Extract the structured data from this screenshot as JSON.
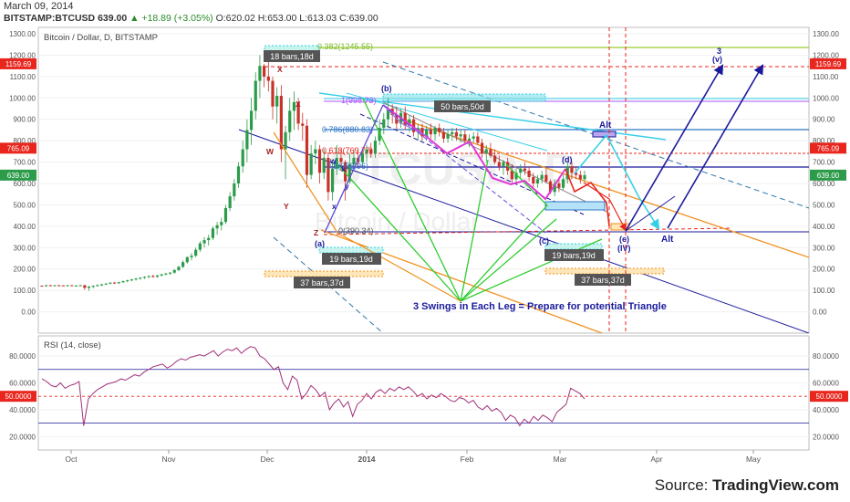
{
  "header": {
    "date": "March 09, 2014",
    "symbol": "BITSTAMP:BTCUSD",
    "price": "639.00",
    "change": "+18.89 (+3.05%)",
    "open": "O:620.02",
    "high": "H:653.00",
    "low": "L:613.03",
    "close": "C:639.00"
  },
  "source": {
    "prefix": "Source:",
    "name": "TradingView.com"
  },
  "watermark": {
    "symbol": "BTCUSD, D",
    "name": "Bitcoin / Dollar"
  },
  "chart_data": [
    {
      "type": "candlestick",
      "title": "Bitcoin / Dollar, D, BITSTAMP",
      "ylim": [
        -100,
        1330
      ],
      "y_ticks": [
        "0.00",
        "100.00",
        "200.00",
        "300.00",
        "400.00",
        "500.00",
        "600.00",
        "700.00",
        "800.00",
        "900.00",
        "1000.00",
        "1100.00",
        "1200.00",
        "1300.00"
      ],
      "x_ticks": [
        "Oct",
        "Nov",
        "Dec",
        "2014",
        "Feb",
        "Mar",
        "Apr",
        "May"
      ],
      "price_labels": [
        {
          "value": 1159.69,
          "text": "1159.69",
          "color": "#e8261e"
        },
        {
          "value": 765.09,
          "text": "765.09",
          "color": "#e8261e"
        },
        {
          "value": 639.0,
          "text": "639.00",
          "color": "#2c9b4a"
        }
      ],
      "series": [
        {
          "ohlc": [
            [
              122,
              123,
              119,
              121
            ],
            [
              121,
              126,
              117,
              124
            ],
            [
              124,
              126,
              120,
              122
            ],
            [
              122,
              125,
              119,
              124
            ],
            [
              124,
              126,
              122,
              123
            ],
            [
              123,
              124,
              120,
              122
            ],
            [
              122,
              125,
              118,
              124
            ],
            [
              124,
              125,
              120,
              121
            ],
            [
              121,
              124,
              117,
              123
            ],
            [
              123,
              126,
              120,
              124
            ],
            [
              124,
              126,
              103,
              112
            ],
            [
              112,
              120,
              98,
              118
            ],
            [
              118,
              124,
              110,
              121
            ],
            [
              121,
              128,
              117,
              125
            ],
            [
              125,
              131,
              120,
              128
            ],
            [
              128,
              134,
              125,
              132
            ],
            [
              132,
              138,
              128,
              136
            ],
            [
              136,
              140,
              131,
              134
            ],
            [
              134,
              140,
              130,
              138
            ],
            [
              138,
              146,
              135,
              143
            ],
            [
              143,
              150,
              138,
              147
            ],
            [
              147,
              154,
              143,
              151
            ],
            [
              151,
              158,
              146,
              155
            ],
            [
              155,
              162,
              150,
              159
            ],
            [
              159,
              166,
              154,
              163
            ],
            [
              163,
              170,
              158,
              167
            ],
            [
              167,
              173,
              160,
              164
            ],
            [
              164,
              172,
              159,
              170
            ],
            [
              170,
              178,
              165,
              175
            ],
            [
              175,
              182,
              170,
              179
            ],
            [
              179,
              186,
              172,
              183
            ],
            [
              183,
              200,
              178,
              195
            ],
            [
              195,
              215,
              190,
              210
            ],
            [
              210,
              240,
              205,
              232
            ],
            [
              232,
              260,
              225,
              255
            ],
            [
              255,
              275,
              240,
              262
            ],
            [
              262,
              300,
              255,
              290
            ],
            [
              290,
              330,
              280,
              320
            ],
            [
              320,
              350,
              300,
              335
            ],
            [
              335,
              360,
              310,
              345
            ],
            [
              345,
              400,
              335,
              390
            ],
            [
              390,
              420,
              360,
              405
            ],
            [
              405,
              440,
              380,
              420
            ],
            [
              420,
              500,
              410,
              485
            ],
            [
              485,
              560,
              470,
              540
            ],
            [
              540,
              620,
              520,
              600
            ],
            [
              600,
              700,
              580,
              680
            ],
            [
              680,
              800,
              650,
              760
            ],
            [
              760,
              900,
              700,
              850
            ],
            [
              850,
              1000,
              780,
              940
            ],
            [
              940,
              1120,
              900,
              1080
            ],
            [
              1080,
              1200,
              1000,
              1150
            ],
            [
              1150,
              1160,
              1050,
              1100
            ],
            [
              1100,
              1170,
              1030,
              1080
            ],
            [
              1080,
              1100,
              900,
              960
            ],
            [
              960,
              1050,
              880,
              1010
            ],
            [
              1010,
              1060,
              700,
              760
            ],
            [
              760,
              870,
              620,
              840
            ],
            [
              840,
              1000,
              800,
              940
            ],
            [
              940,
              1030,
              850,
              980
            ],
            [
              980,
              1000,
              850,
              880
            ],
            [
              880,
              930,
              800,
              870
            ],
            [
              870,
              900,
              580,
              640
            ],
            [
              640,
              780,
              620,
              740
            ],
            [
              740,
              800,
              690,
              760
            ],
            [
              760,
              780,
              600,
              650
            ],
            [
              650,
              760,
              620,
              720
            ],
            [
              720,
              740,
              520,
              560
            ],
            [
              560,
              700,
              520,
              670
            ],
            [
              670,
              780,
              640,
              720
            ],
            [
              720,
              760,
              660,
              700
            ],
            [
              700,
              710,
              520,
              610
            ],
            [
              610,
              740,
              600,
              690
            ],
            [
              690,
              760,
              660,
              720
            ],
            [
              720,
              760,
              680,
              700
            ],
            [
              700,
              760,
              680,
              740
            ],
            [
              740,
              780,
              700,
              760
            ],
            [
              760,
              790,
              720,
              740
            ],
            [
              740,
              820,
              720,
              800
            ],
            [
              800,
              900,
              780,
              860
            ],
            [
              860,
              930,
              830,
              900
            ],
            [
              900,
              1000,
              860,
              950
            ],
            [
              950,
              970,
              880,
              920
            ],
            [
              920,
              960,
              850,
              880
            ],
            [
              880,
              950,
              860,
              930
            ],
            [
              930,
              960,
              850,
              870
            ],
            [
              870,
              920,
              840,
              900
            ],
            [
              900,
              920,
              820,
              840
            ],
            [
              840,
              880,
              800,
              860
            ],
            [
              860,
              880,
              800,
              820
            ],
            [
              820,
              870,
              800,
              850
            ],
            [
              850,
              880,
              810,
              830
            ],
            [
              830,
              870,
              800,
              860
            ],
            [
              860,
              880,
              820,
              840
            ],
            [
              840,
              860,
              790,
              810
            ],
            [
              810,
              850,
              790,
              830
            ],
            [
              830,
              860,
              800,
              840
            ],
            [
              840,
              860,
              800,
              820
            ],
            [
              820,
              850,
              790,
              830
            ],
            [
              830,
              850,
              790,
              800
            ],
            [
              800,
              830,
              770,
              810
            ],
            [
              810,
              840,
              790,
              820
            ],
            [
              820,
              840,
              780,
              790
            ],
            [
              790,
              810,
              720,
              740
            ],
            [
              740,
              780,
              700,
              760
            ],
            [
              760,
              790,
              720,
              730
            ],
            [
              730,
              760,
              690,
              700
            ],
            [
              700,
              730,
              660,
              680
            ],
            [
              680,
              710,
              640,
              700
            ],
            [
              700,
              720,
              640,
              660
            ],
            [
              660,
              690,
              600,
              620
            ],
            [
              620,
              670,
              600,
              650
            ],
            [
              650,
              690,
              620,
              670
            ],
            [
              670,
              700,
              640,
              660
            ],
            [
              660,
              680,
              610,
              630
            ],
            [
              630,
              650,
              580,
              600
            ],
            [
              600,
              640,
              580,
              620
            ],
            [
              620,
              660,
              600,
              640
            ],
            [
              640,
              670,
              600,
              610
            ],
            [
              610,
              620,
              550,
              560
            ],
            [
              560,
              620,
              540,
              600
            ],
            [
              600,
              630,
              560,
              580
            ],
            [
              580,
              640,
              570,
              620
            ],
            [
              620,
              700,
              600,
              680
            ],
            [
              680,
              700,
              620,
              650
            ],
            [
              650,
              680,
              620,
              640
            ],
            [
              640,
              660,
              600,
              620
            ],
            [
              620,
              660,
              610,
              639
            ]
          ]
        }
      ],
      "annotations": [
        {
          "text": "18 bars,18d",
          "kind": "range-box"
        },
        {
          "text": "50 bars,50d",
          "kind": "range-box"
        },
        {
          "text": "19 bars,19d",
          "kind": "range-box"
        },
        {
          "text": "19 bars,19d",
          "kind": "range-box"
        },
        {
          "text": "37 bars,37d",
          "kind": "range-box"
        },
        {
          "text": "37 bars,37d",
          "kind": "range-box"
        },
        {
          "text": "0.382(1245.55)",
          "kind": "fib"
        },
        {
          "text": "1(998.73)",
          "kind": "fib"
        },
        {
          "text": "0.786(880.83)",
          "kind": "fib"
        },
        {
          "text": "0.618(769.77)",
          "kind": "fib"
        },
        {
          "text": "0.5(658.96)",
          "kind": "fib"
        },
        {
          "text": "0(390.34)",
          "kind": "fib"
        },
        {
          "text": "(a)",
          "kind": "wave"
        },
        {
          "text": "(b)",
          "kind": "wave"
        },
        {
          "text": "(c)",
          "kind": "wave"
        },
        {
          "text": "(d)",
          "kind": "wave"
        },
        {
          "text": "(e)",
          "kind": "wave"
        },
        {
          "text": "(IV)",
          "kind": "wave"
        },
        {
          "text": "3",
          "kind": "wave"
        },
        {
          "text": "(v)",
          "kind": "wave"
        },
        {
          "text": "Alt",
          "kind": "wave"
        },
        {
          "text": "Alt",
          "kind": "wave"
        },
        {
          "text": "W",
          "kind": "wave"
        },
        {
          "text": "X",
          "kind": "wave"
        },
        {
          "text": "X",
          "kind": "wave"
        },
        {
          "text": "Y",
          "kind": "wave"
        },
        {
          "text": "Z",
          "kind": "wave"
        },
        {
          "text": "w",
          "kind": "wave"
        },
        {
          "text": "x",
          "kind": "wave"
        },
        {
          "text": "y",
          "kind": "wave"
        },
        {
          "text": "x",
          "kind": "wave"
        },
        {
          "text": "3 Swings in Each Leg = Prepare for potential Triangle",
          "kind": "note"
        }
      ]
    },
    {
      "type": "line",
      "title": "RSI (14, close)",
      "ylim": [
        10,
        95
      ],
      "y_ticks": [
        "20.0000",
        "40.0000",
        "60.0000",
        "80.0000"
      ],
      "levels": [
        70,
        50,
        30
      ],
      "price_labels": [
        {
          "value": 50,
          "text": "50.0000",
          "color": "#e8261e"
        }
      ],
      "series": [
        {
          "name": "RSI",
          "values": [
            63,
            61,
            58,
            57,
            60,
            56,
            58,
            59,
            61,
            28,
            48,
            52,
            55,
            57,
            59,
            60,
            61,
            63,
            62,
            64,
            66,
            65,
            68,
            70,
            72,
            73,
            74,
            71,
            73,
            76,
            78,
            77,
            79,
            80,
            81,
            80,
            82,
            84,
            80,
            83,
            85,
            84,
            86,
            82,
            85,
            87,
            86,
            80,
            78,
            74,
            70,
            72,
            60,
            55,
            65,
            62,
            48,
            52,
            58,
            55,
            50,
            53,
            40,
            45,
            48,
            42,
            46,
            35,
            44,
            47,
            52,
            48,
            53,
            55,
            52,
            56,
            54,
            57,
            55,
            57,
            54,
            50,
            52,
            48,
            51,
            49,
            52,
            50,
            47,
            46,
            49,
            48,
            45,
            47,
            42,
            40,
            43,
            39,
            41,
            38,
            32,
            36,
            34,
            28,
            33,
            30,
            35,
            32,
            36,
            34,
            31,
            38,
            41,
            44,
            56,
            54,
            52,
            48
          ]
        }
      ]
    }
  ]
}
